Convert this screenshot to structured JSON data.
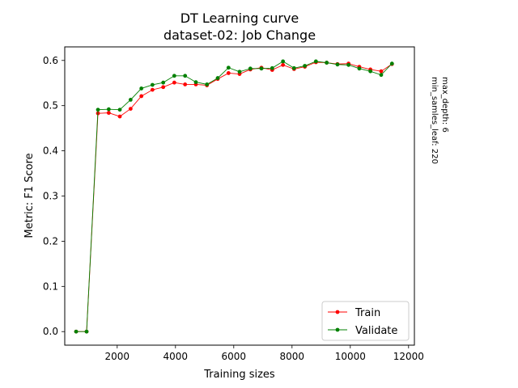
{
  "chart_data": {
    "type": "line",
    "title": "DT Learning curve",
    "subtitle": "dataset-02: Job Change",
    "xlabel": "Training sizes",
    "ylabel": "Metric: F1 Score",
    "xlim": [
      200,
      12200
    ],
    "ylim": [
      -0.03,
      0.63
    ],
    "x_ticks": [
      2000,
      4000,
      6000,
      8000,
      10000,
      12000
    ],
    "y_ticks": [
      0.0,
      0.1,
      0.2,
      0.3,
      0.4,
      0.5,
      0.6
    ],
    "grid": false,
    "legend_position": "bottom-right",
    "side_annotation": [
      "max_depth: 6",
      "min_samles_leaf: 220"
    ],
    "x": [
      590,
      950,
      1340,
      1710,
      2090,
      2460,
      2830,
      3210,
      3580,
      3960,
      4330,
      4700,
      5080,
      5450,
      5820,
      6200,
      6570,
      6950,
      7320,
      7690,
      8070,
      8440,
      8820,
      9190,
      9560,
      9940,
      10310,
      10690,
      11060,
      11430
    ],
    "series": [
      {
        "name": "Train",
        "color": "#ff0000",
        "values": [
          0.0,
          0.0,
          0.483,
          0.484,
          0.476,
          0.493,
          0.521,
          0.535,
          0.541,
          0.551,
          0.547,
          0.547,
          0.545,
          0.559,
          0.572,
          0.57,
          0.58,
          0.584,
          0.579,
          0.59,
          0.581,
          0.586,
          0.596,
          0.595,
          0.592,
          0.593,
          0.586,
          0.58,
          0.576,
          0.592
        ]
      },
      {
        "name": "Validate",
        "color": "#008000",
        "values": [
          0.0,
          0.0,
          0.491,
          0.492,
          0.491,
          0.513,
          0.538,
          0.546,
          0.551,
          0.566,
          0.566,
          0.552,
          0.547,
          0.561,
          0.584,
          0.575,
          0.582,
          0.582,
          0.583,
          0.598,
          0.583,
          0.588,
          0.598,
          0.595,
          0.591,
          0.59,
          0.582,
          0.576,
          0.568,
          0.593
        ]
      }
    ]
  }
}
